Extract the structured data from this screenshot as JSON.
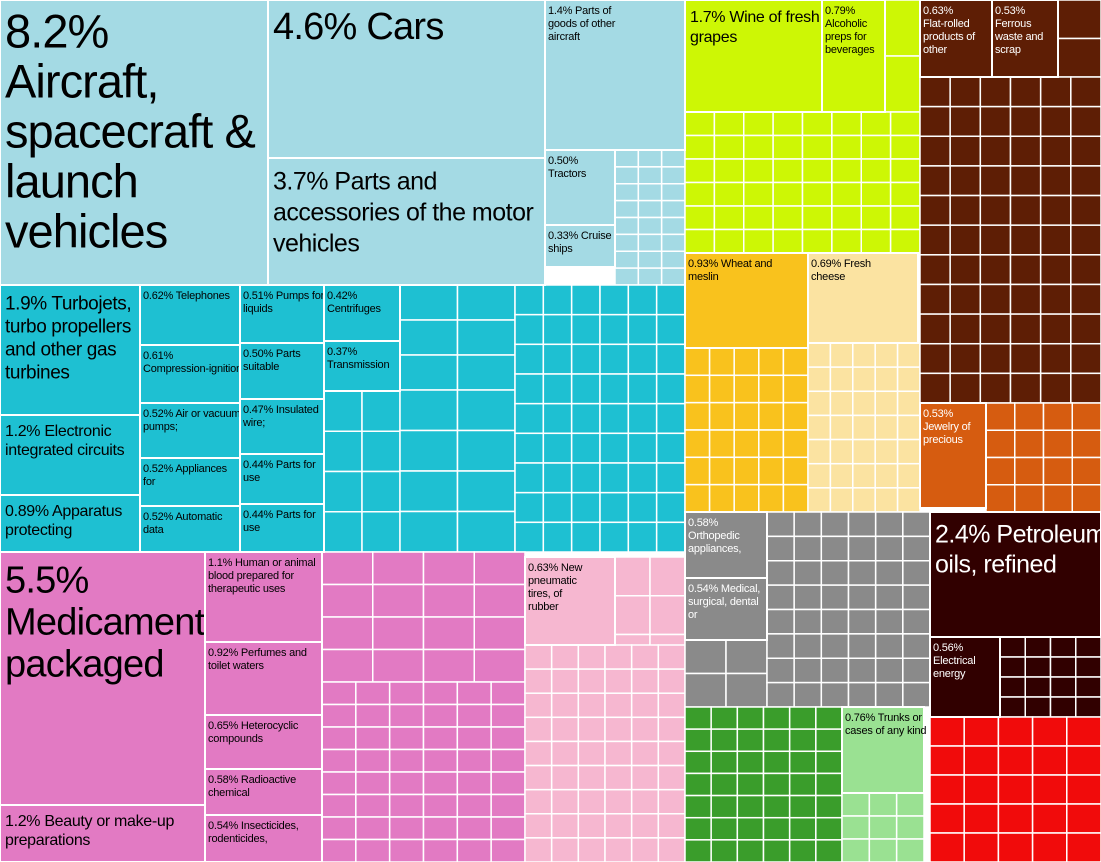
{
  "chart_data": {
    "type": "treemap",
    "title": "",
    "unit": "% of total exports",
    "colors": {
      "transport": "#a4dae4",
      "machinery": "#1ec0d2",
      "chemicals": "#e27ac3",
      "rubber": "#f6b7d0",
      "vegetable": "#cdf705",
      "animal": "#f9c21d",
      "food": "#fbe3a1",
      "metals": "#5e1e05",
      "precious": "#d65c10",
      "instruments": "#8a8a8a",
      "mineral": "#310000",
      "textiles": "#3a9d2b",
      "leather": "#9ae192",
      "misc": "#f10b0b",
      "border": "#ffffff",
      "text_dark": "#000000",
      "text_light": "#ffffff"
    },
    "labeled_items": [
      {
        "id": "aircraft",
        "group": "transport",
        "value": 8.2,
        "label_lines": [
          "8.2%",
          "Aircraft,",
          "spacecraft &",
          "launch",
          "vehicles"
        ]
      },
      {
        "id": "cars",
        "group": "transport",
        "value": 4.6,
        "label_lines": [
          "4.6% Cars"
        ]
      },
      {
        "id": "motor-parts",
        "group": "transport",
        "value": 3.7,
        "label_lines": [
          "3.7% Parts and",
          "accessories of the motor",
          "vehicles"
        ]
      },
      {
        "id": "aircraft-parts",
        "group": "transport",
        "value": 1.4,
        "label_lines": [
          "1.4% Parts of",
          "goods of other",
          "aircraft"
        ]
      },
      {
        "id": "tractors",
        "group": "transport",
        "value": 0.5,
        "label_lines": [
          "0.50%",
          "Tractors"
        ]
      },
      {
        "id": "cruise-ships",
        "group": "transport",
        "value": 0.33,
        "label_lines": [
          "0.33% Cruise",
          "ships"
        ]
      },
      {
        "id": "turbojets",
        "group": "machinery",
        "value": 1.9,
        "label_lines": [
          "1.9% Turbojets,",
          "turbo propellers",
          "and other gas",
          "turbines"
        ]
      },
      {
        "id": "circuits",
        "group": "machinery",
        "value": 1.2,
        "label_lines": [
          "1.2% Electronic",
          "integrated circuits"
        ]
      },
      {
        "id": "apparatus",
        "group": "machinery",
        "value": 0.89,
        "label_lines": [
          "0.89% Apparatus",
          "protecting"
        ]
      },
      {
        "id": "telephones",
        "group": "machinery",
        "value": 0.62,
        "label_lines": [
          "0.62% Telephones"
        ]
      },
      {
        "id": "compression",
        "group": "machinery",
        "value": 0.61,
        "label_lines": [
          "0.61%",
          "Compression-ignition"
        ]
      },
      {
        "id": "air-pumps",
        "group": "machinery",
        "value": 0.52,
        "label_lines": [
          "0.52% Air or vacuum",
          "pumps;"
        ]
      },
      {
        "id": "appliances",
        "group": "machinery",
        "value": 0.52,
        "label_lines": [
          "0.52% Appliances",
          "for"
        ]
      },
      {
        "id": "automatic-data",
        "group": "machinery",
        "value": 0.52,
        "label_lines": [
          "0.52% Automatic",
          "data"
        ]
      },
      {
        "id": "liquid-pumps",
        "group": "machinery",
        "value": 0.51,
        "label_lines": [
          "0.51% Pumps for",
          "liquids"
        ]
      },
      {
        "id": "parts-suitable",
        "group": "machinery",
        "value": 0.5,
        "label_lines": [
          "0.50% Parts",
          "suitable"
        ]
      },
      {
        "id": "insulated-wire",
        "group": "machinery",
        "value": 0.47,
        "label_lines": [
          "0.47% Insulated",
          "wire;"
        ]
      },
      {
        "id": "parts-use-1",
        "group": "machinery",
        "value": 0.44,
        "label_lines": [
          "0.44% Parts for",
          "use"
        ]
      },
      {
        "id": "parts-use-2",
        "group": "machinery",
        "value": 0.44,
        "label_lines": [
          "0.44% Parts for",
          "use"
        ]
      },
      {
        "id": "centrifuges",
        "group": "machinery",
        "value": 0.42,
        "label_lines": [
          "0.42%",
          "Centrifuges"
        ]
      },
      {
        "id": "transmission",
        "group": "machinery",
        "value": 0.37,
        "label_lines": [
          "0.37%",
          "Transmission"
        ]
      },
      {
        "id": "medicaments",
        "group": "chemicals",
        "value": 5.5,
        "label_lines": [
          "5.5%",
          "Medicaments,",
          "packaged"
        ]
      },
      {
        "id": "beauty",
        "group": "chemicals",
        "value": 1.2,
        "label_lines": [
          "1.2% Beauty or make-up",
          "preparations"
        ]
      },
      {
        "id": "human-blood",
        "group": "chemicals",
        "value": 1.1,
        "label_lines": [
          "1.1% Human or animal",
          "blood prepared for",
          "therapeutic uses"
        ]
      },
      {
        "id": "perfumes",
        "group": "chemicals",
        "value": 0.92,
        "label_lines": [
          "0.92% Perfumes and",
          "toilet waters"
        ]
      },
      {
        "id": "heterocyclic",
        "group": "chemicals",
        "value": 0.65,
        "label_lines": [
          "0.65% Heterocyclic",
          "compounds"
        ]
      },
      {
        "id": "radioactive",
        "group": "chemicals",
        "value": 0.58,
        "label_lines": [
          "0.58% Radioactive",
          "chemical"
        ]
      },
      {
        "id": "insecticides",
        "group": "chemicals",
        "value": 0.54,
        "label_lines": [
          "0.54% Insecticides,",
          "rodenticides,"
        ]
      },
      {
        "id": "tires",
        "group": "rubber",
        "value": 0.63,
        "label_lines": [
          "0.63% New",
          "pneumatic",
          "tires, of",
          "rubber"
        ]
      },
      {
        "id": "wine",
        "group": "vegetable",
        "value": 1.7,
        "label_lines": [
          "1.7% Wine of fresh",
          "grapes"
        ]
      },
      {
        "id": "alcoholic",
        "group": "vegetable",
        "value": 0.79,
        "label_lines": [
          "0.79%",
          "Alcoholic",
          "preps for",
          "beverages"
        ]
      },
      {
        "id": "wheat",
        "group": "animal",
        "value": 0.93,
        "label_lines": [
          "0.93% Wheat and",
          "meslin"
        ]
      },
      {
        "id": "cheese",
        "group": "food",
        "value": 0.69,
        "label_lines": [
          "0.69% Fresh",
          "cheese"
        ]
      },
      {
        "id": "flat-rolled",
        "group": "metals",
        "value": 0.63,
        "label_lines": [
          "0.63%",
          "Flat-rolled",
          "products of",
          "other"
        ]
      },
      {
        "id": "ferrous-waste",
        "group": "metals",
        "value": 0.53,
        "label_lines": [
          "0.53%",
          "Ferrous",
          "waste and",
          "scrap"
        ]
      },
      {
        "id": "jewelry",
        "group": "precious",
        "value": 0.53,
        "label_lines": [
          "0.53%",
          "Jewelry of",
          "precious"
        ]
      },
      {
        "id": "orthopedic",
        "group": "instruments",
        "value": 0.58,
        "label_lines": [
          "0.58%",
          "Orthopedic",
          "appliances,"
        ]
      },
      {
        "id": "medical",
        "group": "instruments",
        "value": 0.54,
        "label_lines": [
          "0.54% Medical,",
          "surgical, dental",
          "or"
        ]
      },
      {
        "id": "petroleum",
        "group": "mineral",
        "value": 2.4,
        "label_lines": [
          "2.4% Petroleum",
          "oils, refined"
        ]
      },
      {
        "id": "electrical-energy",
        "group": "mineral",
        "value": 0.56,
        "label_lines": [
          "0.56%",
          "Electrical",
          "energy"
        ]
      },
      {
        "id": "trunks",
        "group": "leather",
        "value": 0.76,
        "label_lines": [
          "0.76% Trunks or",
          "cases of any kind"
        ]
      }
    ]
  }
}
